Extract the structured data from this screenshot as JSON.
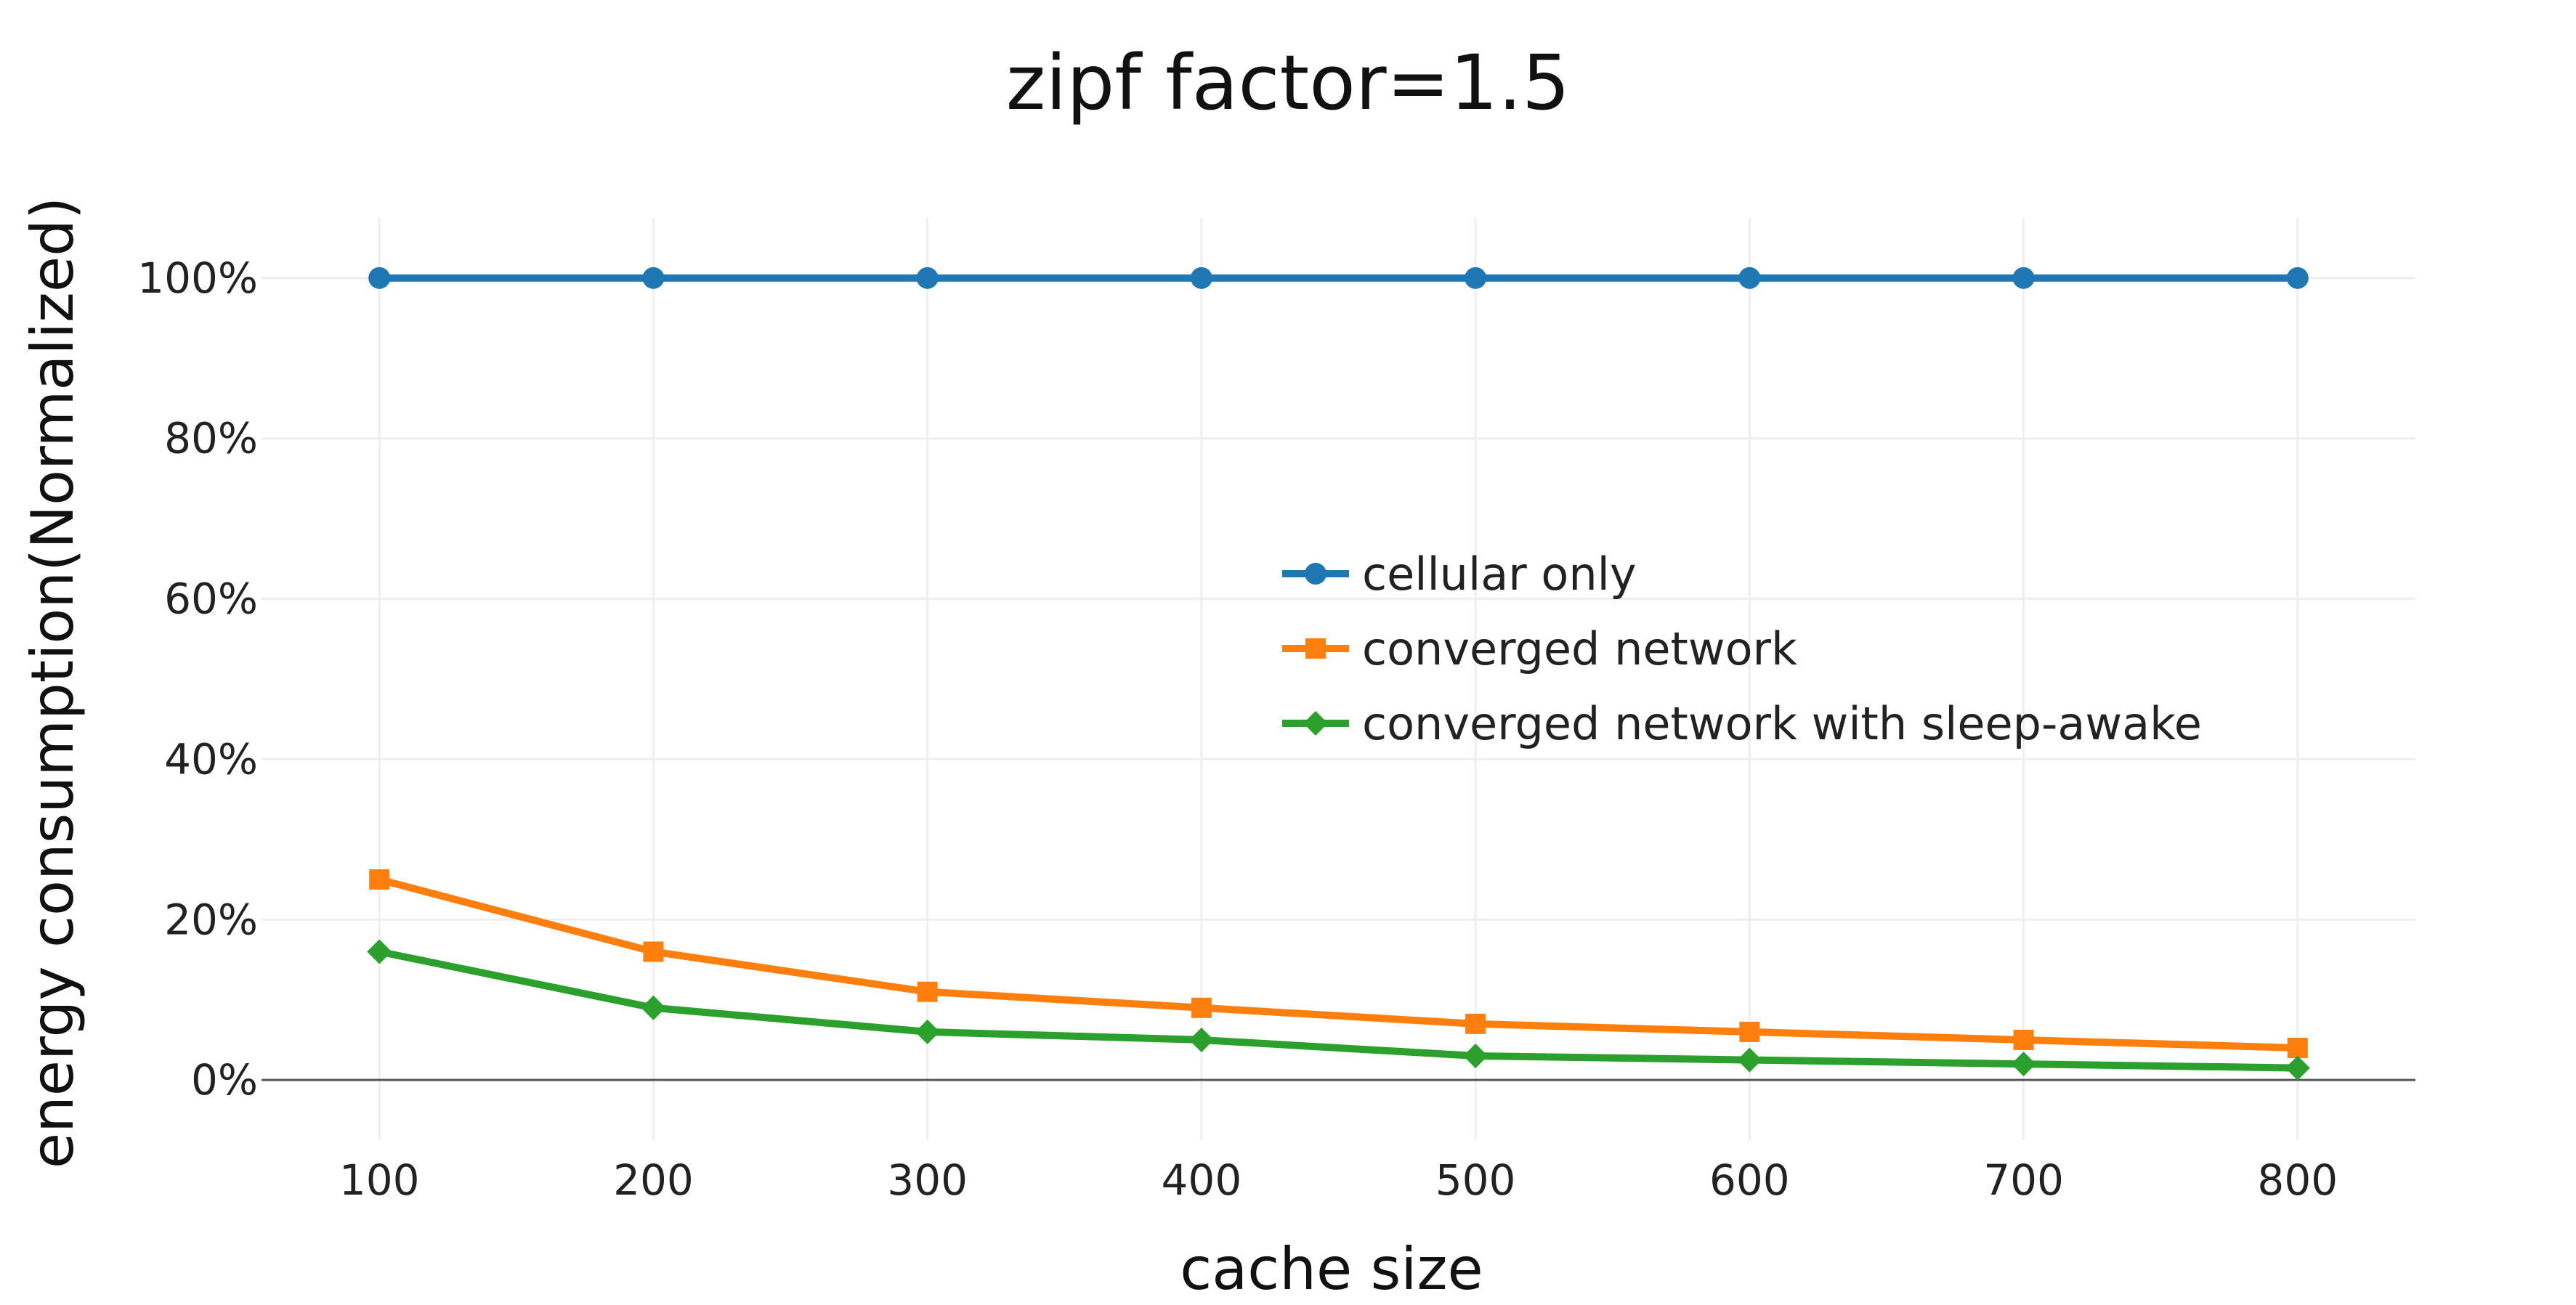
{
  "chart_data": {
    "type": "line",
    "title": "zipf factor=1.5",
    "xlabel": "cache size",
    "ylabel": "energy consumption(Normalized)",
    "x": [
      100,
      200,
      300,
      400,
      500,
      600,
      700,
      800
    ],
    "x_ticks": [
      "100",
      "200",
      "300",
      "400",
      "500",
      "600",
      "700",
      "800"
    ],
    "y_ticks": [
      "0%",
      "20%",
      "40%",
      "60%",
      "80%",
      "100%"
    ],
    "y_tick_values": [
      0,
      20,
      40,
      60,
      80,
      100
    ],
    "xlim": [
      57,
      843
    ],
    "ylim": [
      -7.5,
      107.5
    ],
    "grid": true,
    "legend_position": "center-right",
    "series": [
      {
        "name": "cellular only",
        "color": "#1f77b4",
        "marker": "circle",
        "values": [
          100,
          100,
          100,
          100,
          100,
          100,
          100,
          100
        ]
      },
      {
        "name": "converged network",
        "color": "#ff7f0e",
        "marker": "square",
        "values": [
          25,
          16,
          11,
          9,
          7,
          6,
          5,
          4
        ]
      },
      {
        "name": "converged network with sleep-awake",
        "color": "#2ca02c",
        "marker": "diamond",
        "values": [
          16,
          9,
          6,
          5,
          3,
          2.5,
          2,
          1.5
        ]
      }
    ]
  }
}
